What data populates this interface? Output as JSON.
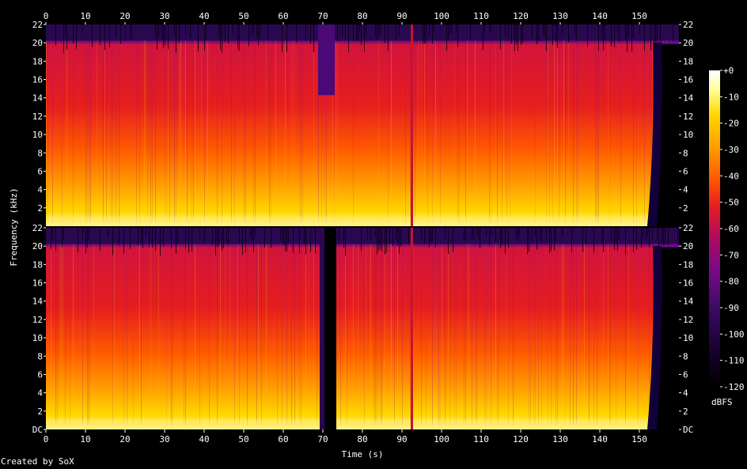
{
  "chart_data": {
    "type": "heatmap",
    "subtype": "spectrogram",
    "title": "",
    "xlabel": "Time (s)",
    "ylabel": "Frequency (kHz)",
    "xlim": [
      0,
      160
    ],
    "x_ticks": [
      "0",
      "10",
      "20",
      "30",
      "40",
      "50",
      "60",
      "70",
      "80",
      "90",
      "100",
      "110",
      "120",
      "130",
      "140",
      "150"
    ],
    "ylim_khz": [
      0,
      22
    ],
    "y_ticks_top": [
      "2",
      "4",
      "6",
      "8",
      "10",
      "12",
      "14",
      "16",
      "18",
      "20",
      "22"
    ],
    "y_ticks_bottom": [
      "DC",
      "2",
      "4",
      "6",
      "8",
      "10",
      "12",
      "14",
      "16",
      "18",
      "20",
      "22"
    ],
    "channels": 2,
    "colorbar": {
      "label": "dBFS",
      "range": [
        -120,
        0
      ],
      "ticks": [
        "+0",
        "-10",
        "-20",
        "-30",
        "-40",
        "-50",
        "-60",
        "-70",
        "-80",
        "-90",
        "-100",
        "-110",
        "-120"
      ]
    },
    "notable_features": [
      {
        "time_s": [
          70,
          73
        ],
        "description": "low energy gap"
      },
      {
        "time_s": [
          92,
          93
        ],
        "description": "vertical line"
      },
      {
        "time_s": [
          154,
          160
        ],
        "description": "fade out to silence"
      }
    ],
    "grid": false,
    "legend": "colorbar-right"
  },
  "credit": "Created by SoX",
  "colors": {
    "background": "#000000",
    "text": "#ffffff",
    "colormap": [
      "#000000",
      "#1a0030",
      "#3c0b66",
      "#7a0a8a",
      "#b40a5a",
      "#e61e1e",
      "#ff5a00",
      "#ffa000",
      "#ffd800",
      "#ffff99",
      "#ffffff"
    ]
  }
}
